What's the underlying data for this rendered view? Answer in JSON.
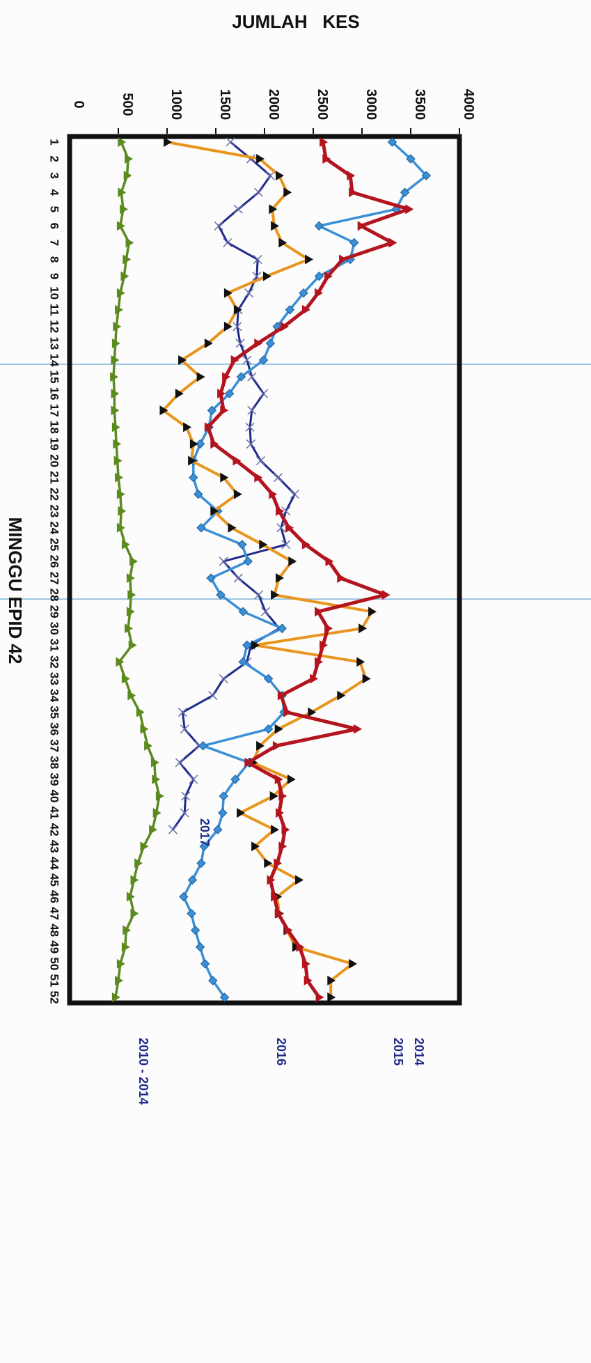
{
  "chart_data": {
    "type": "line",
    "ylabel": "JUMLAH   KES",
    "xlabel": "MINGGU EPID 42",
    "ylim": [
      0,
      4000
    ],
    "y_ticks": [
      0,
      500,
      1000,
      1500,
      2000,
      2500,
      3000,
      3500,
      4000
    ],
    "x_ticks": [
      "1",
      "2",
      "3",
      "4",
      "5",
      "6",
      "7",
      "8",
      "9",
      "10",
      "11",
      "12",
      "13",
      "14",
      "15",
      "16",
      "17",
      "18",
      "19",
      "20",
      "21",
      "22",
      "23",
      "24",
      "25",
      "26",
      "27",
      "28",
      "29",
      "30",
      "31",
      "32",
      "33",
      "34",
      "35",
      "36",
      "37",
      "38",
      "39",
      "40",
      "41",
      "42",
      "43",
      "44",
      "45",
      "46",
      "47",
      "48",
      "49",
      "50",
      "51",
      "52"
    ],
    "orientation": "rotated",
    "grid": false,
    "reference_weeks": [
      14,
      28
    ],
    "series": [
      {
        "name": "2014",
        "color": "#e8951e",
        "marker": "triangle",
        "values": [
          1000,
          1950,
          2150,
          2230,
          2080,
          2100,
          2180,
          2450,
          2020,
          1620,
          1720,
          1620,
          1420,
          1150,
          1340,
          1120,
          960,
          1200,
          1270,
          1250,
          1580,
          1720,
          1480,
          1660,
          1980,
          2280,
          2150,
          2100,
          3100,
          3000,
          1900,
          2980,
          3040,
          2780,
          2480,
          2140,
          1950,
          1880,
          2270,
          2090,
          1750,
          2100,
          1900,
          2030,
          2350,
          2130,
          2150,
          2230,
          2320,
          2900,
          2680,
          2680
        ],
        "label": "2014"
      },
      {
        "name": "2015",
        "color": "#b4141e",
        "marker": "triangle",
        "values": [
          2600,
          2630,
          2880,
          2900,
          3480,
          2990,
          3310,
          2800,
          2650,
          2550,
          2420,
          2200,
          1930,
          1690,
          1600,
          1550,
          1580,
          1420,
          1480,
          1710,
          1930,
          2080,
          2150,
          2250,
          2420,
          2660,
          2780,
          3240,
          2550,
          2650,
          2600,
          2550,
          2500,
          2170,
          2230,
          2950,
          2120,
          1830,
          2140,
          2180,
          2150,
          2210,
          2180,
          2130,
          2060,
          2100,
          2140,
          2240,
          2360,
          2420,
          2440,
          2560
        ],
        "label": "2015"
      },
      {
        "name": "2016",
        "color": "#3a8fd6",
        "marker": "diamond",
        "values": [
          3310,
          3500,
          3660,
          3440,
          3350,
          2560,
          2920,
          2880,
          2560,
          2400,
          2260,
          2130,
          2060,
          1990,
          1760,
          1640,
          1460,
          1430,
          1340,
          1270,
          1270,
          1320,
          1520,
          1350,
          1770,
          1830,
          1450,
          1550,
          1780,
          2180,
          1820,
          1780,
          2040,
          2180,
          2200,
          2040,
          1370,
          1840,
          1700,
          1580,
          1570,
          1520,
          1380,
          1350,
          1260,
          1170,
          1250,
          1290,
          1340,
          1390,
          1470,
          1590
        ],
        "label": "2016"
      },
      {
        "name": "2017",
        "color": "#1f2a8a",
        "marker": "cross",
        "values": [
          1650,
          1860,
          2060,
          1940,
          1730,
          1530,
          1620,
          1930,
          1920,
          1840,
          1730,
          1720,
          1750,
          1820,
          1870,
          1990,
          1870,
          1850,
          1860,
          1960,
          2140,
          2310,
          2220,
          2170,
          2220,
          1580,
          1730,
          1940,
          2010,
          2150,
          1860,
          1820,
          1580,
          1470,
          1160,
          1180,
          1330,
          1130,
          1270,
          1190,
          1180,
          1060
        ],
        "label": "2017"
      },
      {
        "name": "2010 - 2014",
        "color": "#5b8a1e",
        "marker": "triangle",
        "values": [
          530,
          600,
          590,
          530,
          550,
          520,
          610,
          580,
          560,
          520,
          500,
          480,
          470,
          460,
          450,
          460,
          460,
          470,
          480,
          490,
          500,
          520,
          530,
          520,
          570,
          650,
          620,
          630,
          620,
          600,
          640,
          510,
          570,
          630,
          720,
          760,
          800,
          870,
          880,
          920,
          890,
          850,
          760,
          700,
          660,
          620,
          660,
          580,
          570,
          520,
          500,
          470
        ],
        "label": "2010 - 2014"
      }
    ]
  }
}
